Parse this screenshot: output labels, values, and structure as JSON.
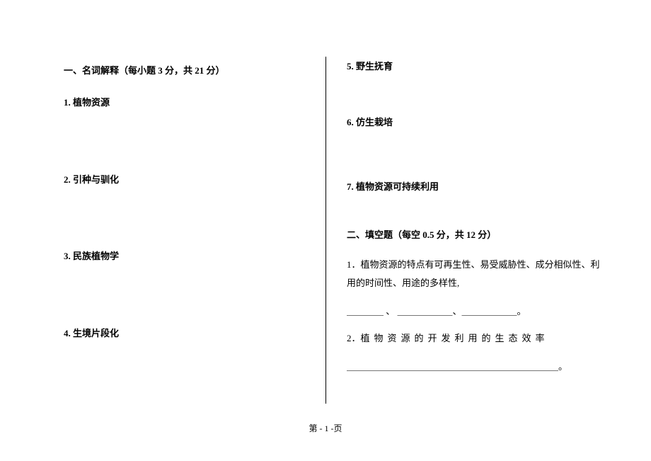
{
  "document": {
    "font_family": "SimSun",
    "text_color": "#000000",
    "background_color": "#ffffff",
    "base_fontsize": 13
  },
  "section_one": {
    "heading": "一、名词解释（每小题 3 分，共 21 分）",
    "questions": [
      {
        "num": "1.",
        "text": "植物资源"
      },
      {
        "num": "2.",
        "text": "引种与驯化"
      },
      {
        "num": "3.",
        "text": "民族植物学"
      },
      {
        "num": "4.",
        "text": "生境片段化"
      },
      {
        "num": "5.",
        "text": "野生抚育"
      },
      {
        "num": "6.",
        "text": "仿生栽培"
      },
      {
        "num": "7.",
        "text": "植物资源可持续利用"
      }
    ]
  },
  "section_two": {
    "heading": "二、填空题（每空 0.5 分，共 12 分）",
    "questions": [
      {
        "num": "1．",
        "text_pre": "植物资源的特点有可再生性、易受威胁性、成分相似性、利用的时间性、用途的多样性,",
        "blanks": "＿＿＿＿ 、 ＿＿＿＿＿＿、＿＿＿＿＿＿。"
      },
      {
        "num": "2．",
        "text_spaced": "植物资源的开发利用的生态效率",
        "blanks_long": "＿＿＿＿＿＿＿＿＿＿＿＿＿＿＿＿＿＿＿＿＿＿＿。"
      }
    ]
  },
  "footer": {
    "text": "第   - 1 -页"
  }
}
